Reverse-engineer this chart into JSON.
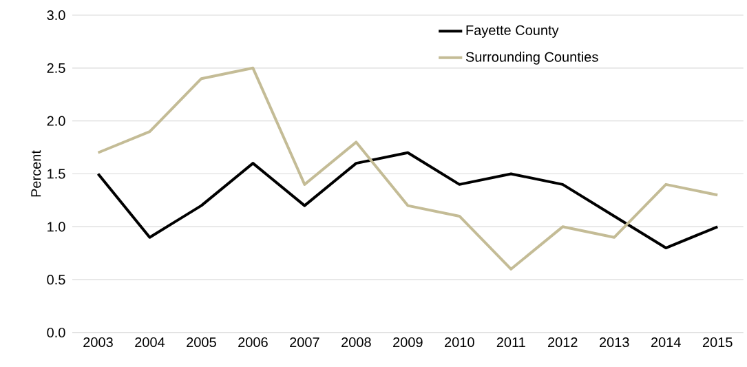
{
  "chart_data": {
    "type": "line",
    "ylabel": "Percent",
    "categories": [
      "2003",
      "2004",
      "2005",
      "2006",
      "2007",
      "2008",
      "2009",
      "2010",
      "2011",
      "2012",
      "2013",
      "2014",
      "2015"
    ],
    "series": [
      {
        "name": "Fayette County",
        "color": "#000000",
        "values": [
          1.5,
          0.9,
          1.2,
          1.6,
          1.2,
          1.6,
          1.7,
          1.4,
          1.5,
          1.4,
          1.1,
          0.8,
          1.0
        ]
      },
      {
        "name": "Surrounding Counties",
        "color": "#c4bc96",
        "values": [
          1.7,
          1.9,
          2.4,
          2.5,
          1.4,
          1.8,
          1.2,
          1.1,
          0.6,
          1.0,
          0.9,
          1.4,
          1.3
        ]
      }
    ],
    "ylim": [
      0,
      3
    ],
    "yticks": [
      {
        "value": 0,
        "label": "0.0"
      },
      {
        "value": 0.5,
        "label": "0.5"
      },
      {
        "value": 1,
        "label": "1.0"
      },
      {
        "value": 1.5,
        "label": "1.5"
      },
      {
        "value": 2,
        "label": "2.0"
      },
      {
        "value": 2.5,
        "label": "2.5"
      },
      {
        "value": 3,
        "label": "3.0"
      }
    ],
    "grid": "y",
    "legend": "top right"
  }
}
